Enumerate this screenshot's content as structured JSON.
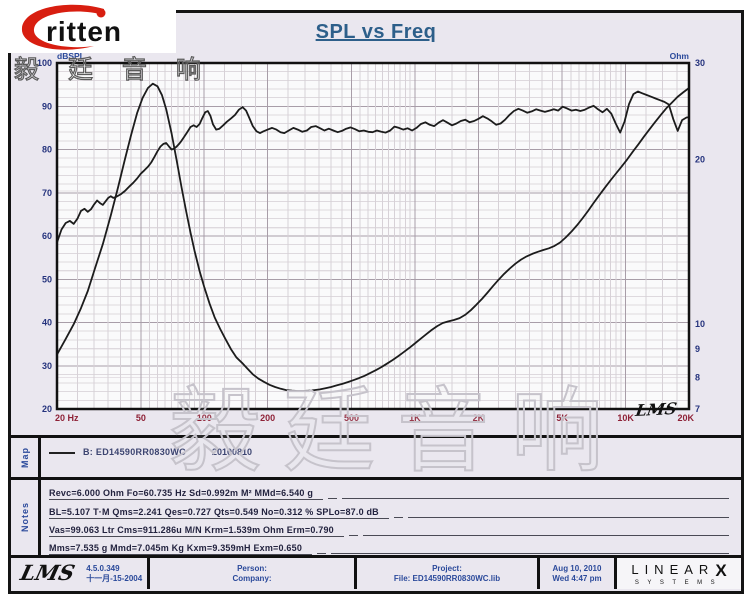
{
  "logo": {
    "brand": "ritten",
    "cn": "毅 廷 音 响"
  },
  "title": "SPL vs Freq",
  "plot_corner_logo": "LMS",
  "watermark": "毅廷音响",
  "axes": {
    "left_label": "dBSPL",
    "right_label": "Ohm",
    "left_ticks": [
      100,
      90,
      80,
      70,
      60,
      50,
      40,
      30,
      20
    ],
    "right_ticks": [
      30,
      20,
      10,
      9,
      8,
      7
    ],
    "x_ticks": [
      {
        "v": 20,
        "label": "20 Hz"
      },
      {
        "v": 50,
        "label": "50"
      },
      {
        "v": 100,
        "label": "100"
      },
      {
        "v": 200,
        "label": "200"
      },
      {
        "v": 500,
        "label": "500"
      },
      {
        "v": 1000,
        "label": "1K"
      },
      {
        "v": 2000,
        "label": "2K"
      },
      {
        "v": 5000,
        "label": "5K"
      },
      {
        "v": 10000,
        "label": "10K"
      },
      {
        "v": 20000,
        "label": "20K"
      }
    ]
  },
  "map": {
    "label": "Map",
    "legend": "B: ED14590RR0830WC",
    "legend_date": "20100810"
  },
  "notes": {
    "label": "Notes",
    "lines": [
      "Revc=6.000 Ohm  Fo=60.735 Hz  Sd=0.992m M²  MMd=6.540 g",
      "BL=5.107 T·M  Qms=2.241  Qes=0.727  Qts=0.549  No=0.312 %  SPLo=87.0 dB",
      "Vas=99.063 Ltr  Cms=911.286u M/N  Krm=1.539m Ohm  Erm=0.790",
      "Mms=7.535 g  Mmd=7.045m Kg  Kxm=9.359mH  Exm=0.650"
    ]
  },
  "footer": {
    "lms_logo": "LMS",
    "version": "4.5.0.349",
    "version_date": "十一月-15-2004",
    "person": "Person:",
    "company": "Company:",
    "project": "Project:",
    "file": "File: ED14590RR0830WC.lib",
    "date": "Aug 10, 2010",
    "time": "Wed 4:47 pm",
    "brand": "LINEAR",
    "brand_x": "X",
    "brand_sub": "SYSTEMS"
  },
  "colors": {
    "title": "#2d5f8a",
    "axis_blue": "#2b4a9b",
    "tick_navy": "#25337d",
    "tick_maroon": "#8e2136",
    "curve": "#1c1c1c",
    "grid_minor": "#d7d1d7",
    "grid_major": "#a89da8",
    "sheet_bg": "#eae7ef",
    "plot_bg": "#fafafb"
  },
  "chart_data": {
    "type": "line",
    "title": "SPL vs Freq",
    "grid": true,
    "x_axis": {
      "label": "Hz",
      "scale": "log",
      "min": 20,
      "max": 20000,
      "major_ticks": [
        50,
        100,
        200,
        500,
        1000,
        2000,
        5000,
        10000
      ]
    },
    "y_left": {
      "label": "dBSPL",
      "scale": "linear",
      "min": 20,
      "max": 100,
      "major_step": 10,
      "minor_step": 2
    },
    "y_right": {
      "label": "Ohm",
      "scale": "log",
      "min": 7,
      "max": 30,
      "ticks": [
        30,
        20,
        10,
        9,
        8,
        7
      ]
    },
    "series": [
      {
        "name": "SPL  B: ED14590RR0830WC  20100810",
        "axis": "left",
        "unit": "dB",
        "points": [
          [
            20,
            58.5
          ],
          [
            21,
            61.5
          ],
          [
            22,
            63
          ],
          [
            23,
            63.5
          ],
          [
            24,
            62.8
          ],
          [
            25,
            64
          ],
          [
            26,
            65.8
          ],
          [
            27,
            66.3
          ],
          [
            28,
            65.6
          ],
          [
            29,
            66.2
          ],
          [
            30,
            67.3
          ],
          [
            31,
            68.2
          ],
          [
            32,
            67.6
          ],
          [
            33,
            67.2
          ],
          [
            34,
            68
          ],
          [
            35,
            68.8
          ],
          [
            36,
            69.2
          ],
          [
            37,
            68.8
          ],
          [
            38,
            69
          ],
          [
            40,
            69.6
          ],
          [
            42,
            70.4
          ],
          [
            44,
            71.4
          ],
          [
            46,
            72.3
          ],
          [
            48,
            73.3
          ],
          [
            50,
            74.4
          ],
          [
            52,
            75.2
          ],
          [
            54,
            76
          ],
          [
            56,
            77
          ],
          [
            58,
            78.3
          ],
          [
            60,
            79.6
          ],
          [
            62,
            80.7
          ],
          [
            64,
            81.3
          ],
          [
            66,
            81.5
          ],
          [
            68,
            80.7
          ],
          [
            70,
            80
          ],
          [
            72,
            80.2
          ],
          [
            74,
            80.7
          ],
          [
            76,
            81.3
          ],
          [
            78,
            82
          ],
          [
            80,
            82.8
          ],
          [
            83,
            84
          ],
          [
            86,
            85.2
          ],
          [
            89,
            85.6
          ],
          [
            92,
            85.2
          ],
          [
            95,
            85.9
          ],
          [
            98,
            87.3
          ],
          [
            101,
            88.6
          ],
          [
            104,
            88.9
          ],
          [
            107,
            87.8
          ],
          [
            110,
            85.8
          ],
          [
            114,
            84.6
          ],
          [
            118,
            84.8
          ],
          [
            123,
            85.6
          ],
          [
            128,
            86.4
          ],
          [
            134,
            87.2
          ],
          [
            140,
            88
          ],
          [
            146,
            89.2
          ],
          [
            152,
            89.8
          ],
          [
            158,
            89
          ],
          [
            164,
            87.2
          ],
          [
            170,
            85.4
          ],
          [
            177,
            84.2
          ],
          [
            184,
            83.8
          ],
          [
            191,
            84.2
          ],
          [
            200,
            84.6
          ],
          [
            210,
            85
          ],
          [
            220,
            84.6
          ],
          [
            230,
            84
          ],
          [
            240,
            83.8
          ],
          [
            252,
            84.4
          ],
          [
            265,
            85
          ],
          [
            278,
            84.6
          ],
          [
            292,
            84.1
          ],
          [
            307,
            84.4
          ],
          [
            322,
            85.2
          ],
          [
            338,
            85.4
          ],
          [
            355,
            84.9
          ],
          [
            372,
            84.4
          ],
          [
            390,
            84.8
          ],
          [
            410,
            84.4
          ],
          [
            430,
            84
          ],
          [
            450,
            84.3
          ],
          [
            472,
            84.8
          ],
          [
            495,
            85.1
          ],
          [
            520,
            84.7
          ],
          [
            545,
            84.2
          ],
          [
            572,
            84.4
          ],
          [
            600,
            84.1
          ],
          [
            630,
            84
          ],
          [
            660,
            84.4
          ],
          [
            693,
            84.1
          ],
          [
            727,
            83.9
          ],
          [
            763,
            84.4
          ],
          [
            800,
            85.3
          ],
          [
            840,
            85
          ],
          [
            880,
            84.6
          ],
          [
            924,
            84.9
          ],
          [
            970,
            84.4
          ],
          [
            1018,
            85
          ],
          [
            1068,
            85.9
          ],
          [
            1121,
            86.3
          ],
          [
            1177,
            85.7
          ],
          [
            1235,
            85.4
          ],
          [
            1296,
            86.2
          ],
          [
            1360,
            86.8
          ],
          [
            1428,
            86.2
          ],
          [
            1499,
            85.6
          ],
          [
            1573,
            86
          ],
          [
            1651,
            86.6
          ],
          [
            1733,
            86.9
          ],
          [
            1819,
            86.3
          ],
          [
            1909,
            86.6
          ],
          [
            2004,
            87.1
          ],
          [
            2103,
            87.7
          ],
          [
            2207,
            87.2
          ],
          [
            2317,
            86.5
          ],
          [
            2432,
            85.7
          ],
          [
            2552,
            86
          ],
          [
            2679,
            86.9
          ],
          [
            2812,
            88
          ],
          [
            2951,
            88.9
          ],
          [
            3098,
            89.4
          ],
          [
            3251,
            89
          ],
          [
            3413,
            88.5
          ],
          [
            3582,
            88.8
          ],
          [
            3759,
            89.3
          ],
          [
            3946,
            89
          ],
          [
            4141,
            88.7
          ],
          [
            4347,
            89
          ],
          [
            4562,
            89.3
          ],
          [
            4788,
            89
          ],
          [
            5025,
            89.9
          ],
          [
            5274,
            89.5
          ],
          [
            5536,
            89
          ],
          [
            5810,
            89.2
          ],
          [
            6098,
            88.9
          ],
          [
            6400,
            89.2
          ],
          [
            6717,
            89.7
          ],
          [
            7050,
            90.1
          ],
          [
            7399,
            89.3
          ],
          [
            7766,
            88.6
          ],
          [
            8151,
            89.4
          ],
          [
            8555,
            88.3
          ],
          [
            8979,
            86
          ],
          [
            9424,
            83.9
          ],
          [
            9891,
            86.5
          ],
          [
            10381,
            90.5
          ],
          [
            10896,
            92.8
          ],
          [
            11436,
            93.4
          ],
          [
            12003,
            93
          ],
          [
            12598,
            92.6
          ],
          [
            13222,
            92.2
          ],
          [
            13877,
            91.8
          ],
          [
            14565,
            91.4
          ],
          [
            15287,
            91
          ],
          [
            16045,
            90.4
          ],
          [
            16840,
            87
          ],
          [
            17675,
            84.3
          ],
          [
            18551,
            86.8
          ],
          [
            19470,
            87.4
          ],
          [
            20000,
            87.5
          ]
        ]
      },
      {
        "name": "Impedance",
        "axis": "right",
        "unit": "Ohm",
        "points": [
          [
            20,
            8.8
          ],
          [
            22,
            9.4
          ],
          [
            24,
            10
          ],
          [
            26,
            10.7
          ],
          [
            28,
            11.5
          ],
          [
            30,
            12.5
          ],
          [
            33,
            14
          ],
          [
            36,
            15.8
          ],
          [
            39,
            17.8
          ],
          [
            42,
            20
          ],
          [
            45,
            22.2
          ],
          [
            48,
            24.3
          ],
          [
            51,
            25.9
          ],
          [
            54,
            27
          ],
          [
            57,
            27.5
          ],
          [
            60,
            27.2
          ],
          [
            63,
            26.2
          ],
          [
            66,
            24.7
          ],
          [
            70,
            22.3
          ],
          [
            74,
            19.9
          ],
          [
            78,
            17.8
          ],
          [
            82,
            16.1
          ],
          [
            86,
            14.7
          ],
          [
            90,
            13.6
          ],
          [
            95,
            12.5
          ],
          [
            100,
            11.7
          ],
          [
            106,
            10.9
          ],
          [
            112,
            10.3
          ],
          [
            119,
            9.8
          ],
          [
            126,
            9.4
          ],
          [
            134,
            9
          ],
          [
            142,
            8.7
          ],
          [
            151,
            8.5
          ],
          [
            160,
            8.3
          ],
          [
            170,
            8.1
          ],
          [
            181,
            7.95
          ],
          [
            192,
            7.85
          ],
          [
            204,
            7.75
          ],
          [
            217,
            7.68
          ],
          [
            231,
            7.62
          ],
          [
            245,
            7.58
          ],
          [
            261,
            7.56
          ],
          [
            277,
            7.55
          ],
          [
            295,
            7.55
          ],
          [
            313,
            7.56
          ],
          [
            333,
            7.58
          ],
          [
            354,
            7.6
          ],
          [
            376,
            7.64
          ],
          [
            400,
            7.68
          ],
          [
            425,
            7.73
          ],
          [
            452,
            7.78
          ],
          [
            480,
            7.84
          ],
          [
            510,
            7.9
          ],
          [
            543,
            7.97
          ],
          [
            577,
            8.05
          ],
          [
            613,
            8.14
          ],
          [
            652,
            8.24
          ],
          [
            693,
            8.35
          ],
          [
            736,
            8.47
          ],
          [
            783,
            8.6
          ],
          [
            832,
            8.74
          ],
          [
            884,
            8.89
          ],
          [
            940,
            9.05
          ],
          [
            999,
            9.22
          ],
          [
            1062,
            9.4
          ],
          [
            1129,
            9.58
          ],
          [
            1200,
            9.76
          ],
          [
            1276,
            9.92
          ],
          [
            1356,
            10.05
          ],
          [
            1441,
            10.12
          ],
          [
            1532,
            10.18
          ],
          [
            1629,
            10.26
          ],
          [
            1731,
            10.4
          ],
          [
            1840,
            10.6
          ],
          [
            1956,
            10.85
          ],
          [
            2079,
            11.12
          ],
          [
            2210,
            11.42
          ],
          [
            2349,
            11.74
          ],
          [
            2497,
            12.06
          ],
          [
            2654,
            12.36
          ],
          [
            2822,
            12.64
          ],
          [
            2999,
            12.9
          ],
          [
            3188,
            13.12
          ],
          [
            3389,
            13.3
          ],
          [
            3602,
            13.44
          ],
          [
            3829,
            13.56
          ],
          [
            4070,
            13.66
          ],
          [
            4326,
            13.76
          ],
          [
            4599,
            13.9
          ],
          [
            4888,
            14.1
          ],
          [
            5196,
            14.4
          ],
          [
            5523,
            14.75
          ],
          [
            5871,
            15.15
          ],
          [
            6241,
            15.6
          ],
          [
            6634,
            16.1
          ],
          [
            7052,
            16.65
          ],
          [
            7496,
            17.2
          ],
          [
            7968,
            17.75
          ],
          [
            8470,
            18.3
          ],
          [
            9003,
            18.85
          ],
          [
            9570,
            19.4
          ],
          [
            10173,
            20
          ],
          [
            10814,
            20.65
          ],
          [
            11495,
            21.3
          ],
          [
            12219,
            22
          ],
          [
            12989,
            22.7
          ],
          [
            13807,
            23.4
          ],
          [
            14676,
            24.1
          ],
          [
            15601,
            24.8
          ],
          [
            16583,
            25.4
          ],
          [
            17628,
            26
          ],
          [
            18738,
            26.5
          ],
          [
            20000,
            27
          ]
        ]
      }
    ]
  }
}
